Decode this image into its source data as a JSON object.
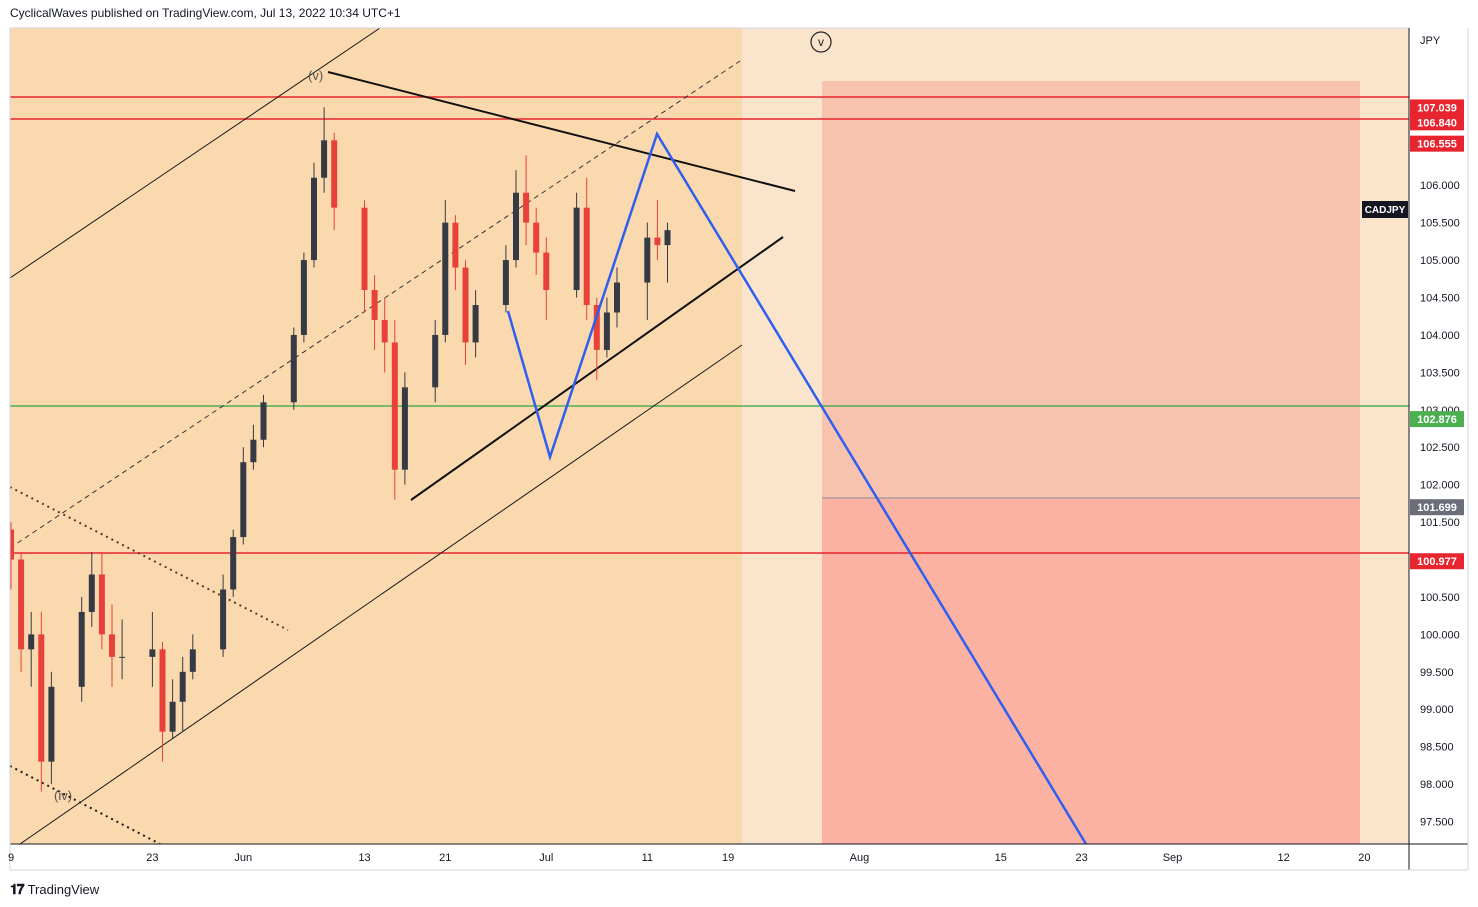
{
  "header": {
    "publisher_line": "CyclicalWaves published on TradingView.com, Jul 13, 2022 10:34 UTC+1"
  },
  "footer": {
    "brand": "TradingView"
  },
  "colors": {
    "channel_fill": "#fbd9ae",
    "background_fill": "#fbe4cc",
    "resistance": "#e8252f",
    "support_green": "#4caf50",
    "projection_upper": "#f8c3ae",
    "projection_lower": "#fbb2a3",
    "projection_path": "#2f5ff0",
    "candle_up": "#363a45",
    "candle_down": "#e8413a"
  },
  "chart_data": {
    "type": "candlestick",
    "symbol": "CADJPY",
    "currency_label": "JPY",
    "y_axis": {
      "ylim": [
        97.2,
        108.1
      ],
      "ticks": [
        "97.500",
        "98.000",
        "98.500",
        "99.000",
        "99.500",
        "100.000",
        "100.500",
        "101.000",
        "101.500",
        "102.000",
        "102.500",
        "103.000",
        "103.500",
        "104.000",
        "104.500",
        "105.000",
        "105.500",
        "106.000"
      ]
    },
    "x_axis": {
      "ticks": [
        {
          "label": "9",
          "date": "2022-05-09"
        },
        {
          "label": "23",
          "date": "2022-05-23"
        },
        {
          "label": "Jun",
          "date": "2022-06-01"
        },
        {
          "label": "13",
          "date": "2022-06-13"
        },
        {
          "label": "21",
          "date": "2022-06-21"
        },
        {
          "label": "Jul",
          "date": "2022-07-01"
        },
        {
          "label": "11",
          "date": "2022-07-11"
        },
        {
          "label": "19",
          "date": "2022-07-19"
        },
        {
          "label": "Aug",
          "date": "2022-08-01"
        },
        {
          "label": "15",
          "date": "2022-08-15"
        },
        {
          "label": "23",
          "date": "2022-08-23"
        },
        {
          "label": "Sep",
          "date": "2022-09-01"
        },
        {
          "label": "12",
          "date": "2022-09-12"
        },
        {
          "label": "20",
          "date": "2022-09-20"
        }
      ]
    },
    "price_labels": [
      {
        "value": 107.039,
        "text": "107.039",
        "kind": "red"
      },
      {
        "value": 106.84,
        "text": "106.840",
        "kind": "red"
      },
      {
        "value": 106.555,
        "text": "106.555",
        "kind": "red"
      },
      {
        "value": 102.876,
        "text": "102.876",
        "kind": "green"
      },
      {
        "value": 101.699,
        "text": "101.699",
        "kind": "gray"
      },
      {
        "value": 100.977,
        "text": "100.977",
        "kind": "red"
      }
    ],
    "horizontal_lines": [
      106.84,
      106.555,
      102.876,
      100.977
    ],
    "wave_labels": [
      {
        "text": "(v)",
        "date": "2022-06-09",
        "price": 107.0
      },
      {
        "text": "(iv)",
        "date": "2022-05-13",
        "price": 97.9
      },
      {
        "text": "v",
        "date": "2022-07-29",
        "price": 107.6,
        "circled": true
      }
    ],
    "candles": [
      {
        "d": "2022-05-09",
        "o": 101.4,
        "h": 101.5,
        "l": 100.6,
        "c": 101.0
      },
      {
        "d": "2022-05-10",
        "o": 101.0,
        "h": 101.1,
        "l": 99.5,
        "c": 99.8
      },
      {
        "d": "2022-05-11",
        "o": 99.8,
        "h": 100.3,
        "l": 99.3,
        "c": 100.0
      },
      {
        "d": "2022-05-12",
        "o": 100.0,
        "h": 100.3,
        "l": 97.9,
        "c": 98.3
      },
      {
        "d": "2022-05-13",
        "o": 98.3,
        "h": 99.5,
        "l": 98.0,
        "c": 99.3
      },
      {
        "d": "2022-05-16",
        "o": 99.3,
        "h": 100.5,
        "l": 99.1,
        "c": 100.3
      },
      {
        "d": "2022-05-17",
        "o": 100.3,
        "h": 101.1,
        "l": 100.1,
        "c": 100.8
      },
      {
        "d": "2022-05-18",
        "o": 100.8,
        "h": 101.1,
        "l": 99.8,
        "c": 100.0
      },
      {
        "d": "2022-05-19",
        "o": 100.0,
        "h": 100.4,
        "l": 99.3,
        "c": 99.7
      },
      {
        "d": "2022-05-20",
        "o": 99.7,
        "h": 100.2,
        "l": 99.4,
        "c": 99.7
      },
      {
        "d": "2022-05-23",
        "o": 99.7,
        "h": 100.3,
        "l": 99.3,
        "c": 99.8
      },
      {
        "d": "2022-05-24",
        "o": 99.8,
        "h": 99.9,
        "l": 98.3,
        "c": 98.7
      },
      {
        "d": "2022-05-25",
        "o": 98.7,
        "h": 99.4,
        "l": 98.6,
        "c": 99.1
      },
      {
        "d": "2022-05-26",
        "o": 99.1,
        "h": 99.7,
        "l": 98.7,
        "c": 99.5
      },
      {
        "d": "2022-05-27",
        "o": 99.5,
        "h": 100.0,
        "l": 99.4,
        "c": 99.8
      },
      {
        "d": "2022-05-30",
        "o": 99.8,
        "h": 100.8,
        "l": 99.7,
        "c": 100.6
      },
      {
        "d": "2022-05-31",
        "o": 100.6,
        "h": 101.4,
        "l": 100.5,
        "c": 101.3
      },
      {
        "d": "2022-06-01",
        "o": 101.3,
        "h": 102.5,
        "l": 101.2,
        "c": 102.3
      },
      {
        "d": "2022-06-02",
        "o": 102.3,
        "h": 102.8,
        "l": 102.2,
        "c": 102.6
      },
      {
        "d": "2022-06-03",
        "o": 102.6,
        "h": 103.2,
        "l": 102.5,
        "c": 103.1
      },
      {
        "d": "2022-06-06",
        "o": 103.1,
        "h": 104.1,
        "l": 103.0,
        "c": 104.0
      },
      {
        "d": "2022-06-07",
        "o": 104.0,
        "h": 105.1,
        "l": 103.9,
        "c": 105.0
      },
      {
        "d": "2022-06-08",
        "o": 105.0,
        "h": 106.3,
        "l": 104.9,
        "c": 106.1
      },
      {
        "d": "2022-06-09",
        "o": 106.1,
        "h": 107.04,
        "l": 105.9,
        "c": 106.6
      },
      {
        "d": "2022-06-10",
        "o": 106.6,
        "h": 106.7,
        "l": 105.4,
        "c": 105.7
      },
      {
        "d": "2022-06-13",
        "o": 105.7,
        "h": 105.8,
        "l": 104.3,
        "c": 104.6
      },
      {
        "d": "2022-06-14",
        "o": 104.6,
        "h": 104.8,
        "l": 103.8,
        "c": 104.2
      },
      {
        "d": "2022-06-15",
        "o": 104.2,
        "h": 104.5,
        "l": 103.5,
        "c": 103.9
      },
      {
        "d": "2022-06-16",
        "o": 103.9,
        "h": 104.2,
        "l": 101.8,
        "c": 102.2
      },
      {
        "d": "2022-06-17",
        "o": 102.2,
        "h": 103.5,
        "l": 102.0,
        "c": 103.3
      },
      {
        "d": "2022-06-20",
        "o": 103.3,
        "h": 104.2,
        "l": 103.1,
        "c": 104.0
      },
      {
        "d": "2022-06-21",
        "o": 104.0,
        "h": 105.8,
        "l": 103.9,
        "c": 105.5
      },
      {
        "d": "2022-06-22",
        "o": 105.5,
        "h": 105.6,
        "l": 104.6,
        "c": 104.9
      },
      {
        "d": "2022-06-23",
        "o": 104.9,
        "h": 105.0,
        "l": 103.6,
        "c": 103.9
      },
      {
        "d": "2022-06-24",
        "o": 103.9,
        "h": 104.6,
        "l": 103.7,
        "c": 104.4
      },
      {
        "d": "2022-06-27",
        "o": 104.4,
        "h": 105.2,
        "l": 104.3,
        "c": 105.0
      },
      {
        "d": "2022-06-28",
        "o": 105.0,
        "h": 106.2,
        "l": 104.9,
        "c": 105.9
      },
      {
        "d": "2022-06-29",
        "o": 105.9,
        "h": 106.4,
        "l": 105.2,
        "c": 105.5
      },
      {
        "d": "2022-06-30",
        "o": 105.5,
        "h": 105.7,
        "l": 104.8,
        "c": 105.1
      },
      {
        "d": "2022-07-01",
        "o": 105.1,
        "h": 105.3,
        "l": 104.2,
        "c": 104.6
      },
      {
        "d": "2022-07-04",
        "o": 104.6,
        "h": 105.9,
        "l": 104.5,
        "c": 105.7
      },
      {
        "d": "2022-07-05",
        "o": 105.7,
        "h": 106.1,
        "l": 104.2,
        "c": 104.4
      },
      {
        "d": "2022-07-06",
        "o": 104.4,
        "h": 104.5,
        "l": 103.4,
        "c": 103.8
      },
      {
        "d": "2022-07-07",
        "o": 103.8,
        "h": 104.5,
        "l": 103.7,
        "c": 104.3
      },
      {
        "d": "2022-07-08",
        "o": 104.3,
        "h": 104.9,
        "l": 104.1,
        "c": 104.7
      },
      {
        "d": "2022-07-11",
        "o": 104.7,
        "h": 105.5,
        "l": 104.2,
        "c": 105.3
      },
      {
        "d": "2022-07-12",
        "o": 105.3,
        "h": 105.8,
        "l": 105.0,
        "c": 105.2
      },
      {
        "d": "2022-07-13",
        "o": 105.2,
        "h": 105.5,
        "l": 104.7,
        "c": 105.4
      }
    ]
  }
}
